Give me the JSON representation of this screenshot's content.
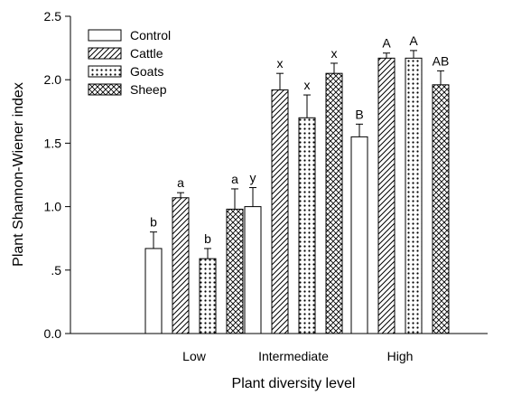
{
  "chart_data": {
    "type": "bar",
    "xlabel": "Plant diversity level",
    "ylabel": "Plant Shannon-Wiener index",
    "ylim": [
      0,
      2.5
    ],
    "yticks": [
      0,
      0.5,
      1.0,
      1.5,
      2.0,
      2.5
    ],
    "ytick_labels": [
      "0.0",
      ".5",
      "1.0",
      "1.5",
      "2.0",
      "2.5"
    ],
    "categories": [
      "Low",
      "Intermediate",
      "High"
    ],
    "legend_position": "top-left",
    "grid": false,
    "series": [
      {
        "name": "Control",
        "pattern": "solid-white",
        "values": [
          0.67,
          1.0,
          1.55
        ],
        "errors": [
          0.13,
          0.15,
          0.1
        ],
        "sig_labels": [
          "b",
          "y",
          "B"
        ]
      },
      {
        "name": "Cattle",
        "pattern": "diagonal-lines",
        "values": [
          1.07,
          1.92,
          2.17
        ],
        "errors": [
          0.04,
          0.13,
          0.04
        ],
        "sig_labels": [
          "a",
          "x",
          "A"
        ]
      },
      {
        "name": "Goats",
        "pattern": "dots",
        "values": [
          0.59,
          1.7,
          2.17
        ],
        "errors": [
          0.08,
          0.18,
          0.06
        ],
        "sig_labels": [
          "b",
          "x",
          "A"
        ]
      },
      {
        "name": "Sheep",
        "pattern": "crosshatch",
        "values": [
          0.98,
          2.05,
          1.96
        ],
        "errors": [
          0.16,
          0.08,
          0.11
        ],
        "sig_labels": [
          "a",
          "x",
          "AB"
        ]
      }
    ]
  }
}
